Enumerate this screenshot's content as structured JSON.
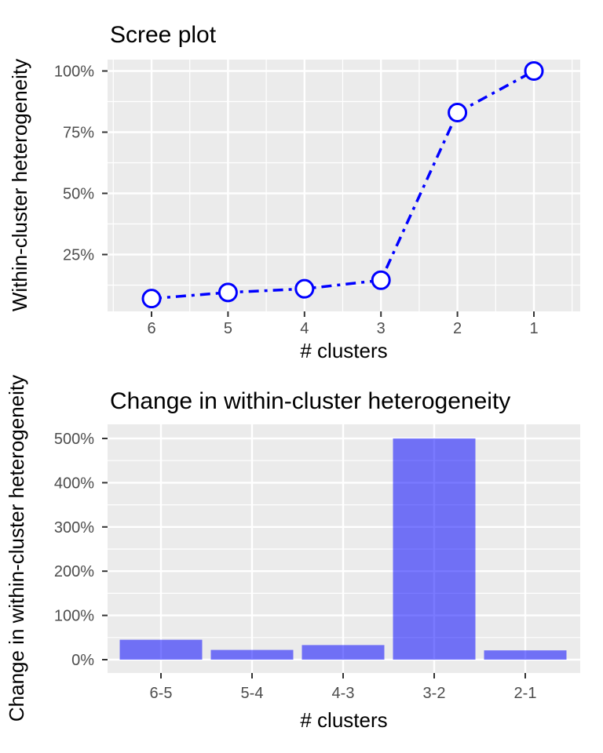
{
  "figure": {
    "background_color": "#ffffff",
    "panel_background_color": "#ebebeb",
    "gridline_color": "#ffffff",
    "tick_mark_color": "#333333",
    "tick_label_color": "#4d4d4d",
    "text_color": "#000000",
    "accent_blue": "#0000ff"
  },
  "chart_data": [
    {
      "type": "line",
      "title": "Scree plot",
      "xlabel": "# clusters",
      "ylabel": "Within-cluster heterogeneity",
      "x": [
        6,
        5,
        4,
        3,
        2,
        1
      ],
      "x_tick_labels": [
        "6",
        "5",
        "4",
        "3",
        "2",
        "1"
      ],
      "x_reversed": true,
      "values_pct": [
        7,
        9.5,
        11,
        14.5,
        83,
        100
      ],
      "y_tick_values": [
        25,
        50,
        75,
        100
      ],
      "y_tick_labels": [
        "25%",
        "50%",
        "75%",
        "100%"
      ],
      "y_minor_tick_values": [
        12.5,
        37.5,
        62.5,
        87.5
      ],
      "ylim": [
        2,
        105
      ],
      "grid": "on",
      "legend": "none",
      "line_color": "#0000ff",
      "line_style": "dash-dot",
      "marker": "open-circle",
      "marker_fill": "#ffffff",
      "marker_stroke": "#0000ff"
    },
    {
      "type": "bar",
      "title": "Change in within-cluster heterogeneity",
      "xlabel": "# clusters",
      "ylabel": "Change in within-cluster heterogeneity",
      "categories": [
        "6-5",
        "5-4",
        "4-3",
        "3-2",
        "2-1"
      ],
      "values_pct": [
        45,
        22,
        33,
        500,
        21
      ],
      "y_tick_values": [
        0,
        100,
        200,
        300,
        400,
        500
      ],
      "y_tick_labels": [
        "0%",
        "100%",
        "200%",
        "300%",
        "400%",
        "500%"
      ],
      "y_minor_tick_values": [
        50,
        150,
        250,
        350,
        450
      ],
      "ylim": [
        -30,
        530
      ],
      "grid": "on",
      "legend": "none",
      "bar_fill": "#0000ff",
      "bar_opacity": 0.52
    }
  ]
}
